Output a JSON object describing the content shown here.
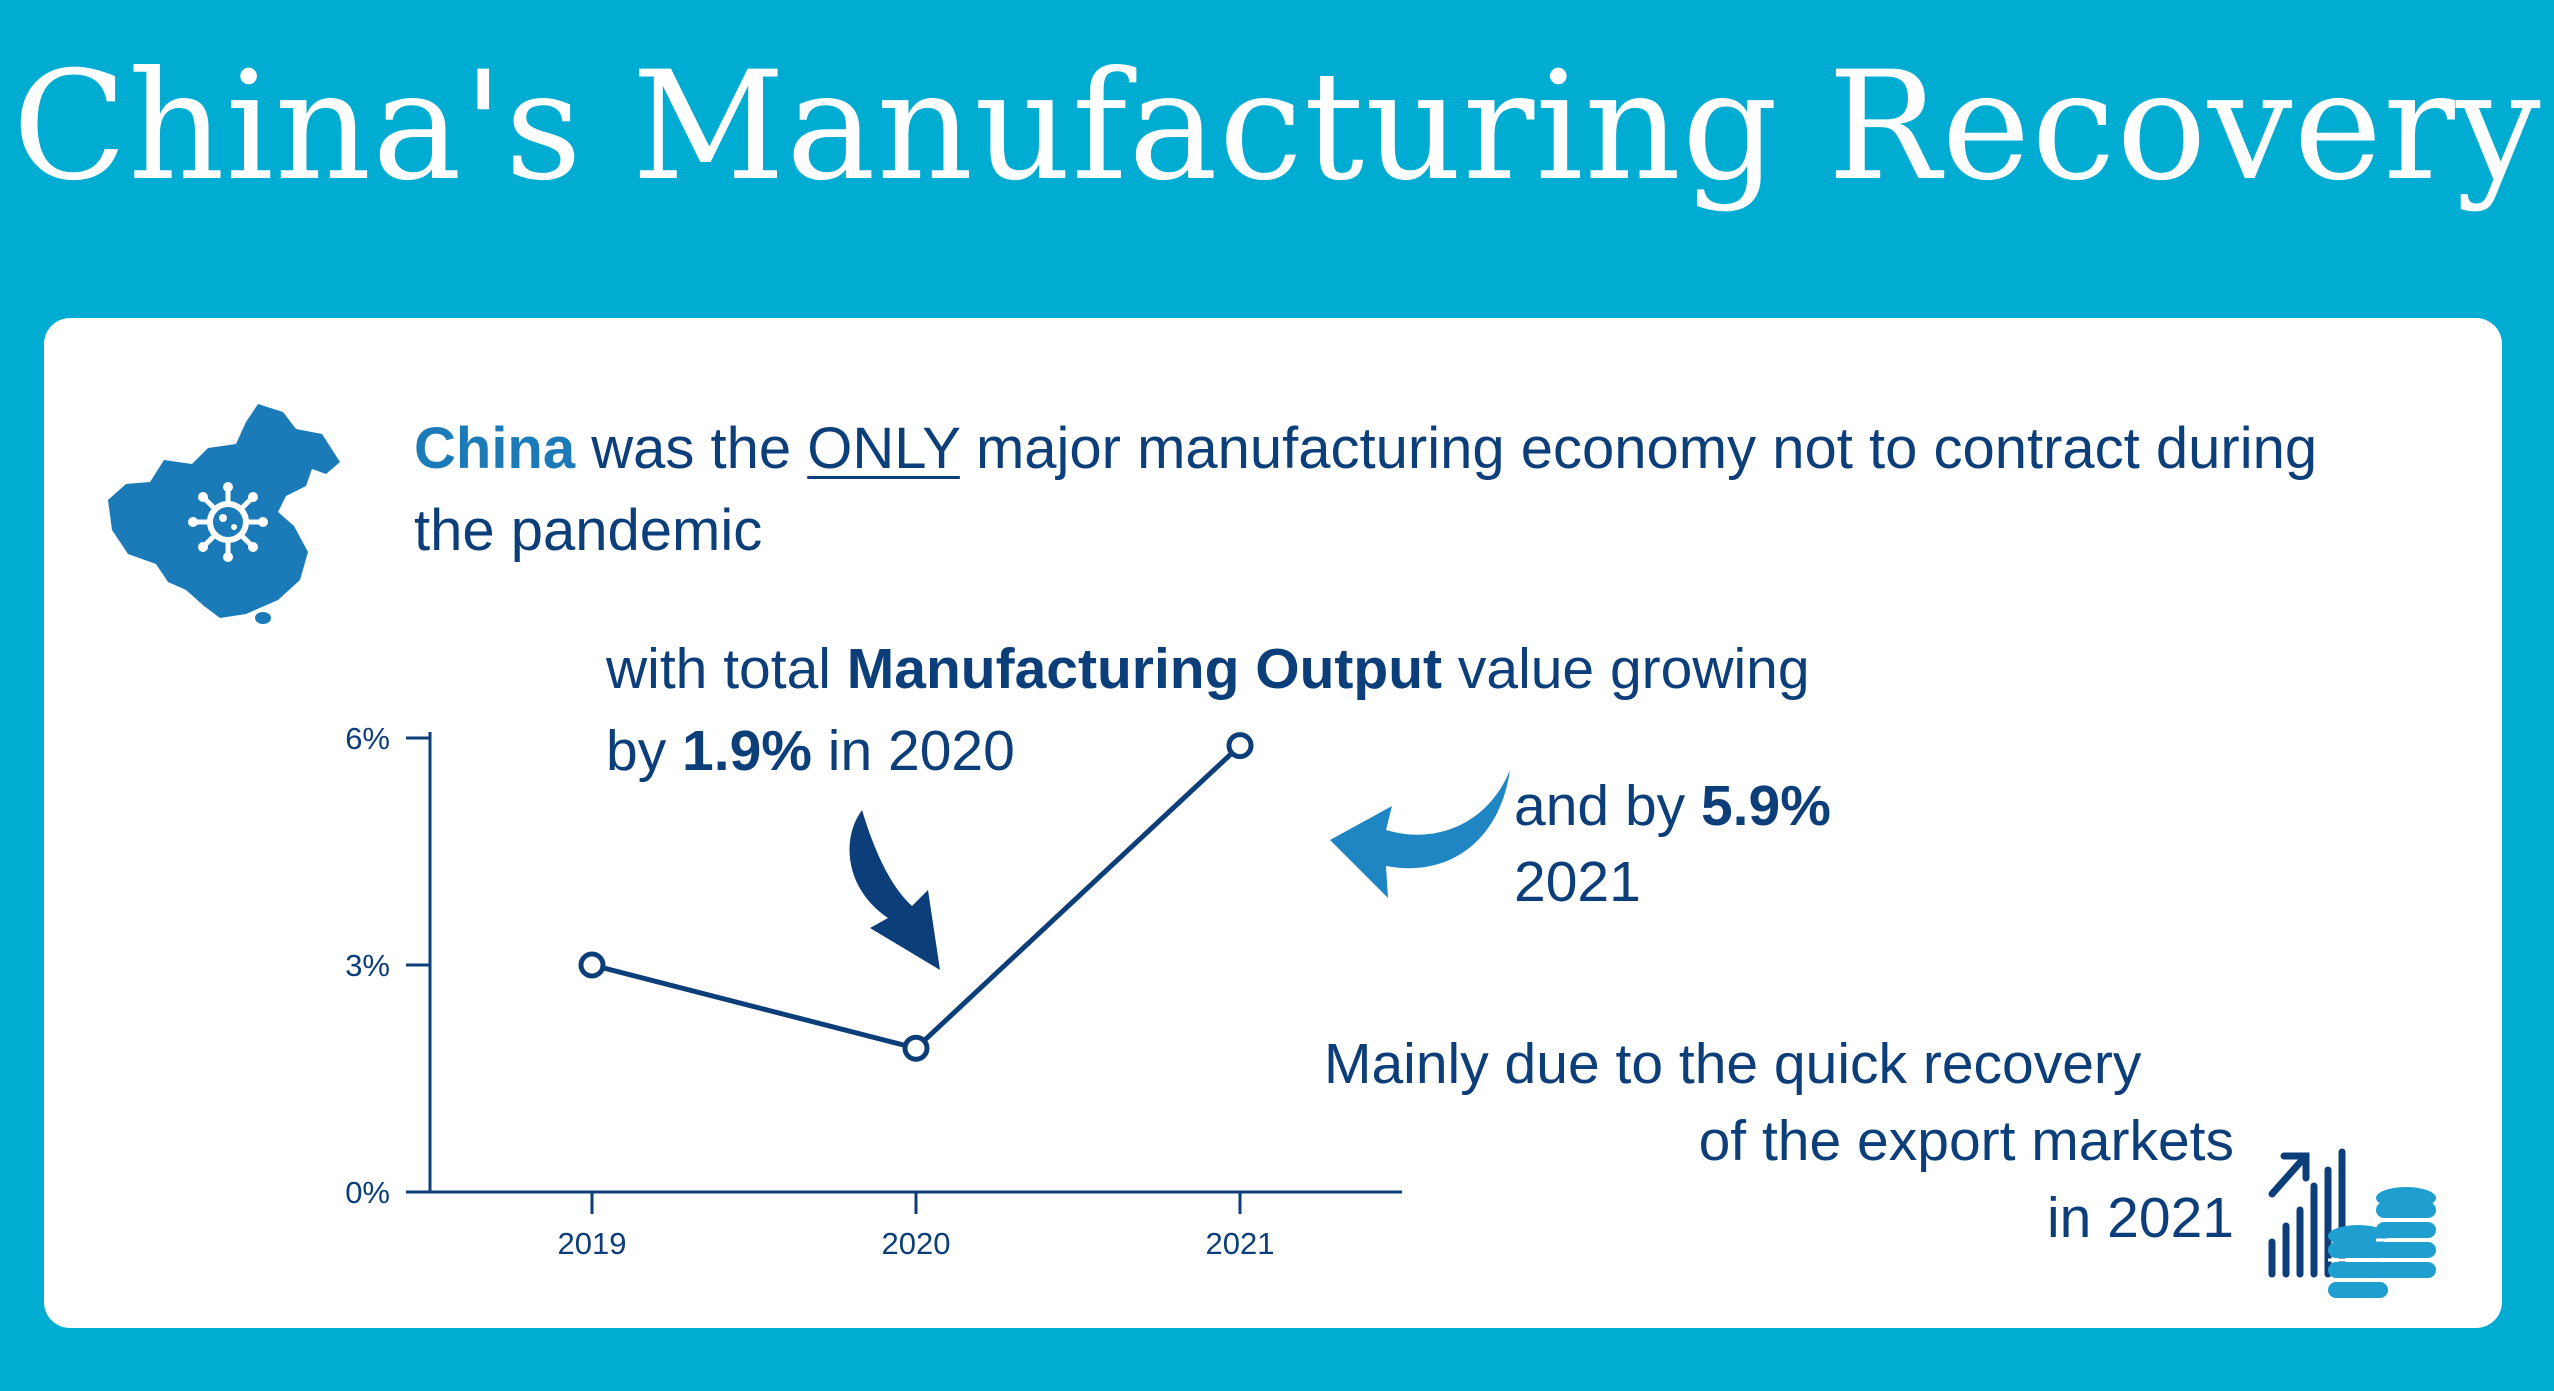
{
  "title": "China's Manufacturing Recovery",
  "headline": {
    "strong": "China",
    "part1": " was the ",
    "underline": "ONLY",
    "part2": " major manufacturing economy not to contract during the pandemic"
  },
  "output_note": {
    "pre": "with total ",
    "bold": "Manufacturing Output",
    "post": " value growing",
    "line2_pre": "by ",
    "line2_bold": "1.9%",
    "line2_post": " in 2020"
  },
  "note_2021": {
    "pre": "and by ",
    "bold": "5.9%",
    "line2": "2021"
  },
  "recovery_note": {
    "line1": "Mainly due to the quick recovery",
    "line2": "of the export markets",
    "line3": "in 2021"
  },
  "colors": {
    "background": "#00acd1",
    "panel": "#ffffff",
    "text_dark": "#0c3e7a",
    "accent_blue": "#1b7bb8",
    "arrow_light": "#1f86c3",
    "arrow_dark": "#0c3e7a"
  },
  "icons": [
    "china-map-virus-icon",
    "curved-arrow-down-icon",
    "curved-arrow-left-icon",
    "export-growth-coins-icon"
  ],
  "chart_data": {
    "type": "line",
    "x": [
      "2019",
      "2020",
      "2021"
    ],
    "series": [
      {
        "values": [
          3.0,
          1.9,
          5.9
        ]
      }
    ],
    "yticks": [
      "0%",
      "3%",
      "6%"
    ],
    "ylim": [
      0,
      6
    ],
    "grid": false
  }
}
